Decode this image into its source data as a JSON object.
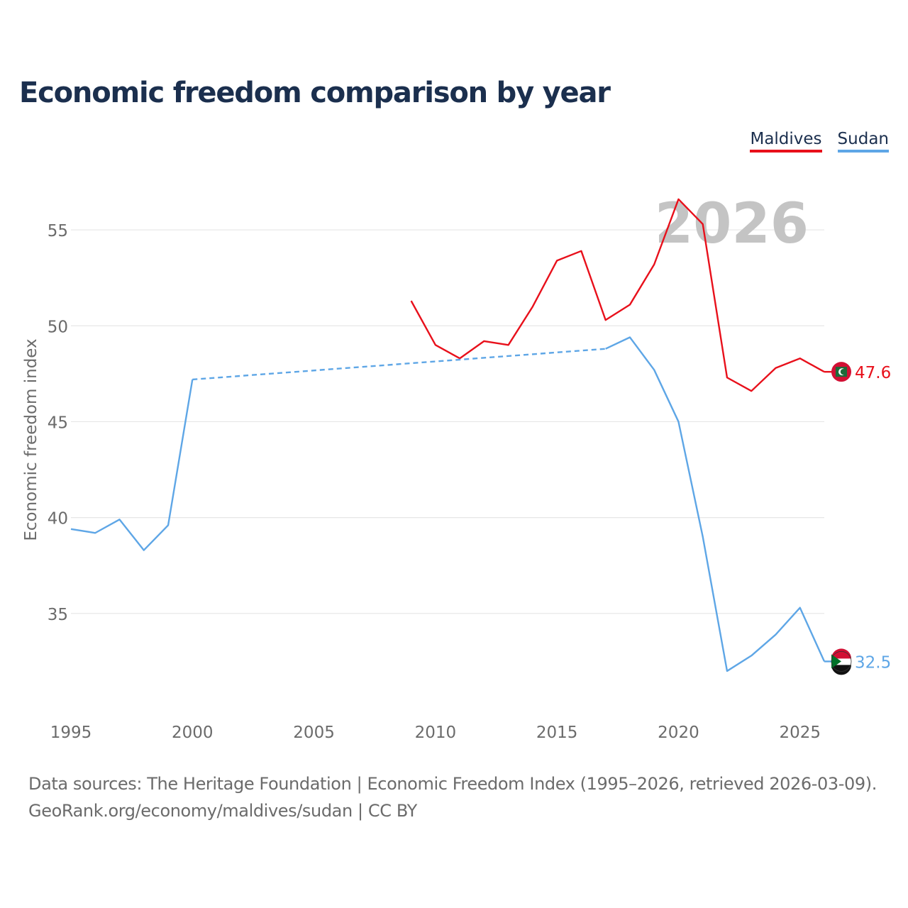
{
  "title": "Economic freedom comparison by year",
  "legend": [
    {
      "label": "Maldives",
      "color": "#e8101b"
    },
    {
      "label": "Sudan",
      "color": "#5ea6e6"
    }
  ],
  "year_watermark": "2026",
  "source_line1": "Data sources: The Heritage Foundation | Economic Freedom Index (1995–2026, retrieved 2026-03-09).",
  "source_line2": "GeoRank.org/economy/maldives/sudan | CC BY",
  "chart_data": {
    "type": "line",
    "title": "Economic freedom comparison by year",
    "xlabel": "",
    "ylabel": "Economic freedom index",
    "xlim": [
      1995,
      2026
    ],
    "ylim": [
      30,
      57
    ],
    "xticks": [
      1995,
      2000,
      2005,
      2010,
      2015,
      2020,
      2025
    ],
    "yticks": [
      35,
      40,
      45,
      50,
      55
    ],
    "grid": true,
    "legend_position": "top-right",
    "series": [
      {
        "name": "Maldives",
        "color": "#e8101b",
        "points": [
          [
            2009,
            51.3
          ],
          [
            2010,
            49.0
          ],
          [
            2011,
            48.3
          ],
          [
            2012,
            49.2
          ],
          [
            2013,
            49.0
          ],
          [
            2014,
            51.0
          ],
          [
            2015,
            53.4
          ],
          [
            2016,
            53.9
          ],
          [
            2017,
            50.3
          ],
          [
            2018,
            51.1
          ],
          [
            2019,
            53.2
          ],
          [
            2020,
            56.6
          ],
          [
            2021,
            55.3
          ],
          [
            2022,
            47.3
          ],
          [
            2023,
            46.6
          ],
          [
            2024,
            47.8
          ],
          [
            2025,
            48.3
          ],
          [
            2026,
            47.6
          ]
        ],
        "gaps": [],
        "end_label": "47.6"
      },
      {
        "name": "Sudan",
        "color": "#5ea6e6",
        "points": [
          [
            1995,
            39.4
          ],
          [
            1996,
            39.2
          ],
          [
            1997,
            39.9
          ],
          [
            1998,
            38.3
          ],
          [
            1999,
            39.6
          ],
          [
            2000,
            47.2
          ],
          [
            2017,
            48.8
          ],
          [
            2018,
            49.4
          ],
          [
            2019,
            47.7
          ],
          [
            2020,
            45.0
          ],
          [
            2021,
            39.0
          ],
          [
            2022,
            32.0
          ],
          [
            2023,
            32.8
          ],
          [
            2024,
            33.9
          ],
          [
            2025,
            35.3
          ],
          [
            2026,
            32.5
          ]
        ],
        "gaps": [
          [
            2000,
            2017
          ]
        ],
        "end_label": "32.5"
      }
    ]
  }
}
